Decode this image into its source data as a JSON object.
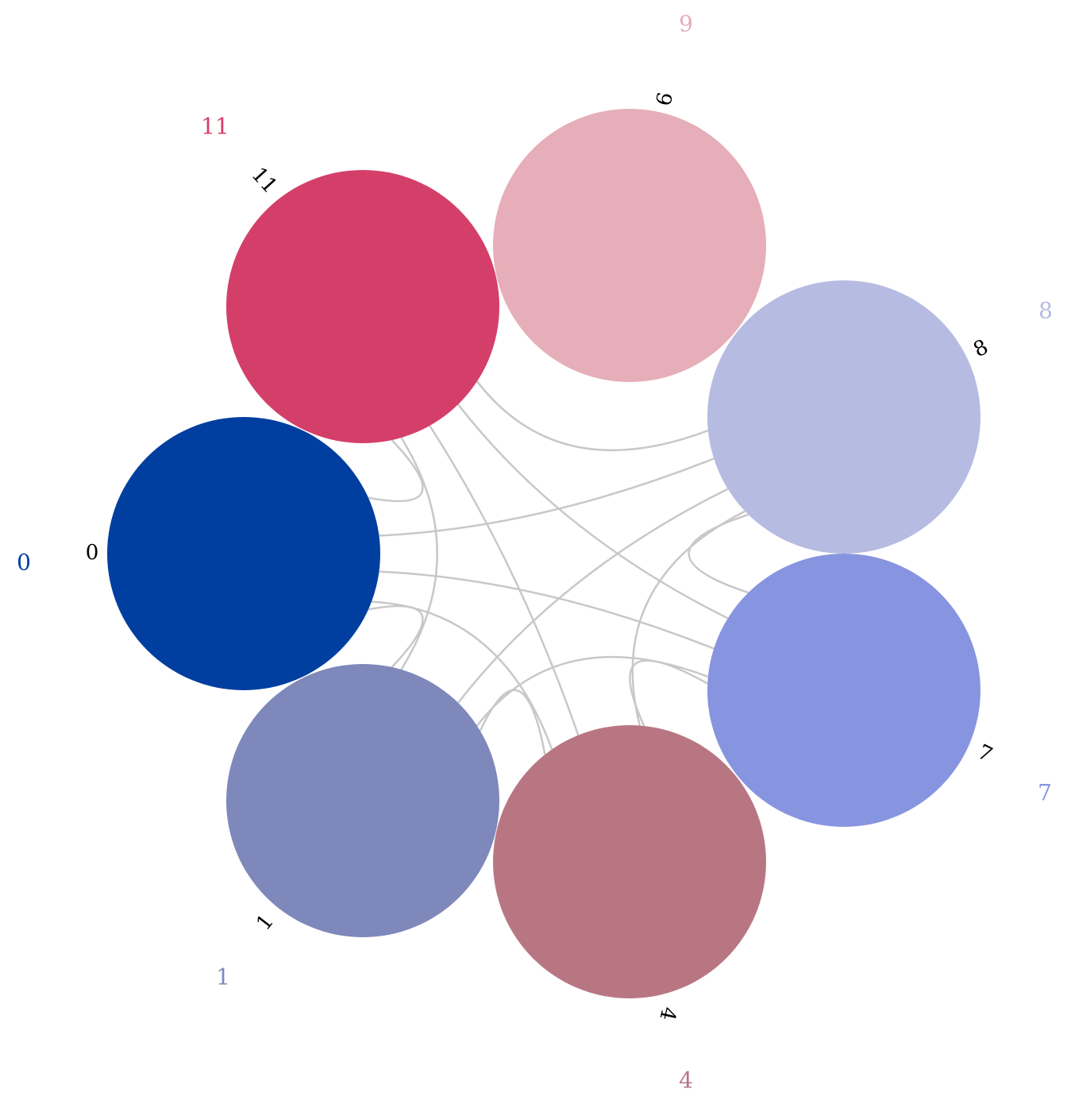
{
  "diagram": {
    "type": "chord-network",
    "nodes": [
      {
        "id": "0",
        "label": "0",
        "color": "#003f9f"
      },
      {
        "id": "11",
        "label": "11",
        "color": "#d43f6a"
      },
      {
        "id": "9",
        "label": "9",
        "color": "#e6aeb8"
      },
      {
        "id": "8",
        "label": "8",
        "color": "#b6bbe2"
      },
      {
        "id": "7",
        "label": "7",
        "color": "#8794e0"
      },
      {
        "id": "4",
        "label": "4",
        "color": "#b87683"
      },
      {
        "id": "1",
        "label": "1",
        "color": "#7e88ba"
      }
    ],
    "edges": [
      [
        "0",
        "11"
      ],
      [
        "0",
        "8"
      ],
      [
        "0",
        "7"
      ],
      [
        "0",
        "1"
      ],
      [
        "0",
        "4"
      ],
      [
        "11",
        "8"
      ],
      [
        "11",
        "7"
      ],
      [
        "11",
        "1"
      ],
      [
        "11",
        "4"
      ],
      [
        "8",
        "7"
      ],
      [
        "8",
        "1"
      ],
      [
        "8",
        "4"
      ],
      [
        "7",
        "1"
      ],
      [
        "7",
        "4"
      ],
      [
        "1",
        "4"
      ]
    ],
    "edge_color": "#c8c8c8"
  }
}
